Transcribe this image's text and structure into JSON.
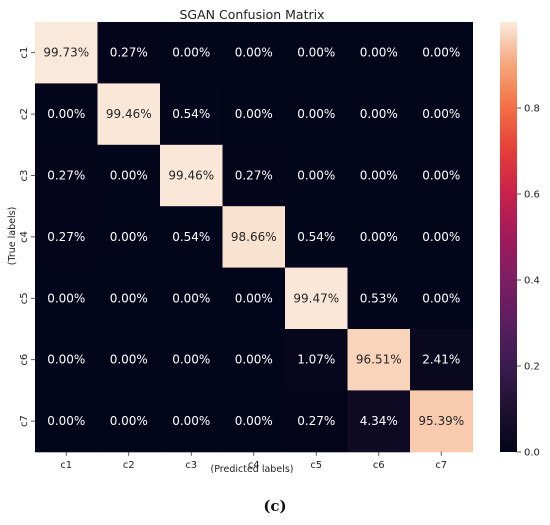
{
  "chart_data": {
    "type": "heatmap",
    "title": "SGAN Confusion Matrix",
    "xlabel": "(Predicted labels)",
    "ylabel": "(True labels)",
    "x_categories": [
      "c1",
      "c2",
      "c3",
      "c4",
      "c5",
      "c6",
      "c7"
    ],
    "y_categories": [
      "c1",
      "c2",
      "c3",
      "c4",
      "c5",
      "c6",
      "c7"
    ],
    "values": [
      [
        0.9973,
        0.0027,
        0.0,
        0.0,
        0.0,
        0.0,
        0.0
      ],
      [
        0.0,
        0.9946,
        0.0054,
        0.0,
        0.0,
        0.0,
        0.0
      ],
      [
        0.0027,
        0.0,
        0.9946,
        0.0027,
        0.0,
        0.0,
        0.0
      ],
      [
        0.0027,
        0.0,
        0.0054,
        0.9866,
        0.0054,
        0.0,
        0.0
      ],
      [
        0.0,
        0.0,
        0.0,
        0.0,
        0.9947,
        0.0053,
        0.0
      ],
      [
        0.0,
        0.0,
        0.0,
        0.0,
        0.0107,
        0.9651,
        0.0241
      ],
      [
        0.0,
        0.0,
        0.0,
        0.0,
        0.0027,
        0.0434,
        0.9539
      ]
    ],
    "cell_labels": [
      [
        "99.73%",
        "0.27%",
        "0.00%",
        "0.00%",
        "0.00%",
        "0.00%",
        "0.00%"
      ],
      [
        "0.00%",
        "99.46%",
        "0.54%",
        "0.00%",
        "0.00%",
        "0.00%",
        "0.00%"
      ],
      [
        "0.27%",
        "0.00%",
        "99.46%",
        "0.27%",
        "0.00%",
        "0.00%",
        "0.00%"
      ],
      [
        "0.27%",
        "0.00%",
        "0.54%",
        "98.66%",
        "0.54%",
        "0.00%",
        "0.00%"
      ],
      [
        "0.00%",
        "0.00%",
        "0.00%",
        "0.00%",
        "99.47%",
        "0.53%",
        "0.00%"
      ],
      [
        "0.00%",
        "0.00%",
        "0.00%",
        "0.00%",
        "1.07%",
        "96.51%",
        "2.41%"
      ],
      [
        "0.00%",
        "0.00%",
        "0.00%",
        "0.00%",
        "0.27%",
        "4.34%",
        "95.39%"
      ]
    ],
    "colorbar": {
      "range": [
        0,
        1
      ],
      "ticks": [
        0.0,
        0.2,
        0.4,
        0.6,
        0.8
      ],
      "tick_labels": [
        "0.0",
        "0.2",
        "0.4",
        "0.6",
        "0.8"
      ]
    },
    "colormap": "rocket"
  },
  "caption": "(c)"
}
